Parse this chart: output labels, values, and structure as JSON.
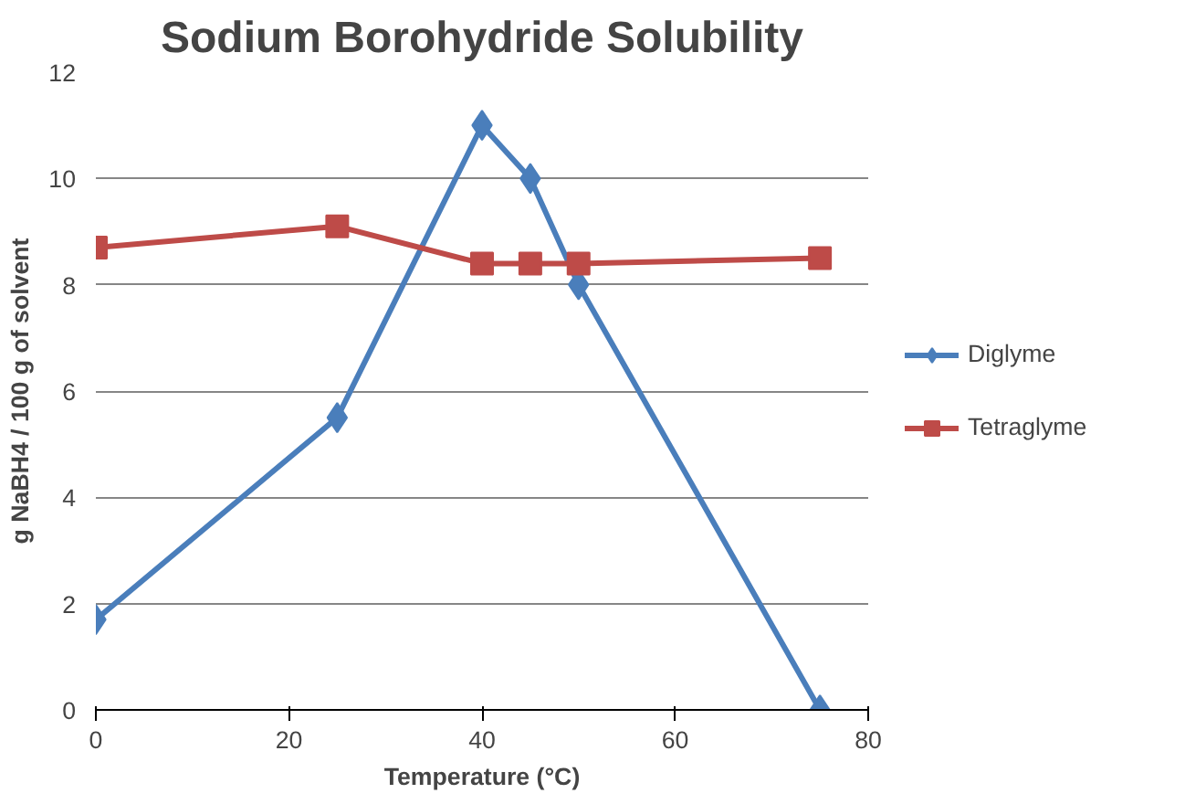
{
  "chart_data": {
    "type": "line",
    "title": "Sodium Borohydride Solubility",
    "xlabel": "Temperature (°C)",
    "ylabel": "g NaBH4 / 100 g of solvent",
    "series": [
      {
        "name": "Diglyme",
        "color": "#4a7ebb",
        "marker": "diamond",
        "x": [
          0,
          25,
          40,
          45,
          50,
          75
        ],
        "values": [
          1.7,
          5.5,
          11,
          10,
          8,
          0
        ]
      },
      {
        "name": "Tetraglyme",
        "color": "#be4b48",
        "marker": "square",
        "x": [
          0,
          25,
          40,
          45,
          50,
          75
        ],
        "values": [
          8.7,
          9.1,
          8.4,
          8.4,
          8.4,
          8.5
        ]
      }
    ],
    "xlim": [
      0,
      80
    ],
    "xticks": [
      0,
      20,
      40,
      60,
      80
    ],
    "ylim": [
      0,
      12
    ],
    "yticks": [
      0,
      2,
      4,
      6,
      8,
      10,
      12
    ],
    "grid": "y",
    "legend": "right",
    "line_style": "solid"
  }
}
